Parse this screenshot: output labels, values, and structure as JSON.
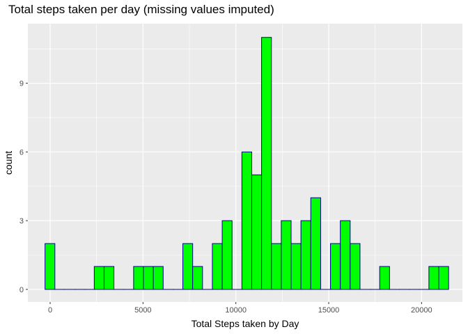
{
  "chart_data": {
    "type": "bar",
    "title": "Total steps taken per day (missing values imputed)",
    "xlabel": "Total Steps taken by Day",
    "ylabel": "count",
    "bin_width": 530,
    "bin_centers": [
      -10,
      520,
      1050,
      1580,
      2110,
      2640,
      3170,
      3700,
      4230,
      4760,
      5290,
      5820,
      6350,
      6880,
      7410,
      7940,
      8470,
      9000,
      9530,
      10060,
      10590,
      11120,
      11650,
      12180,
      12710,
      13240,
      13770,
      14300,
      14830,
      15360,
      15890,
      16420,
      16950,
      17480,
      18010,
      18540,
      19070,
      19600,
      20130,
      20660,
      21190
    ],
    "counts": [
      2,
      0,
      0,
      0,
      0,
      1,
      1,
      0,
      0,
      1,
      1,
      1,
      0,
      0,
      2,
      1,
      0,
      2,
      3,
      0,
      6,
      5,
      11,
      2,
      3,
      2,
      3,
      4,
      0,
      2,
      3,
      2,
      0,
      0,
      1,
      0,
      0,
      0,
      0,
      1,
      1
    ],
    "xlim": [
      -1200,
      22200
    ],
    "ylim": [
      -0.55,
      11.6
    ],
    "x_ticks": [
      0,
      5000,
      10000,
      15000,
      20000
    ],
    "x_tick_labels": [
      "0",
      "5000",
      "10000",
      "15000",
      "20000"
    ],
    "y_ticks": [
      0,
      3,
      6,
      9
    ],
    "y_tick_labels": [
      "0",
      "3",
      "6",
      "9"
    ],
    "fill_color": "#00ff00",
    "edge_color": "#00008b",
    "panel_color": "#ebebeb",
    "grid": true
  }
}
